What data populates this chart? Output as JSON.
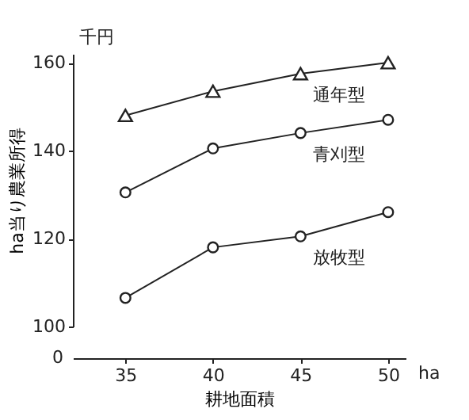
{
  "chart_data": {
    "type": "line",
    "xlabel": "耕地面積",
    "ylabel": "ha当り農業所得",
    "annotations": [
      "千円",
      "ha",
      "0"
    ],
    "x": [
      35,
      40,
      45,
      50
    ],
    "series": [
      {
        "name": "通年型",
        "color": "#222222",
        "marker": "triangle",
        "values": [
          148,
          153.5,
          157.5,
          160
        ]
      },
      {
        "name": "青刈型",
        "color": "#222222",
        "marker": "circle",
        "values": [
          130.5,
          140.5,
          144,
          147
        ]
      },
      {
        "name": "放牧型",
        "color": "#222222",
        "marker": "circle",
        "values": [
          106.5,
          118,
          120.5,
          126
        ]
      }
    ],
    "xlim": [
      32,
      51
    ],
    "xticks": [
      35,
      40,
      45,
      50
    ],
    "ylim": [
      100,
      162
    ],
    "yticks": [
      100,
      120,
      140,
      160
    ],
    "grid": false,
    "legend": false,
    "line_style": "solid"
  }
}
